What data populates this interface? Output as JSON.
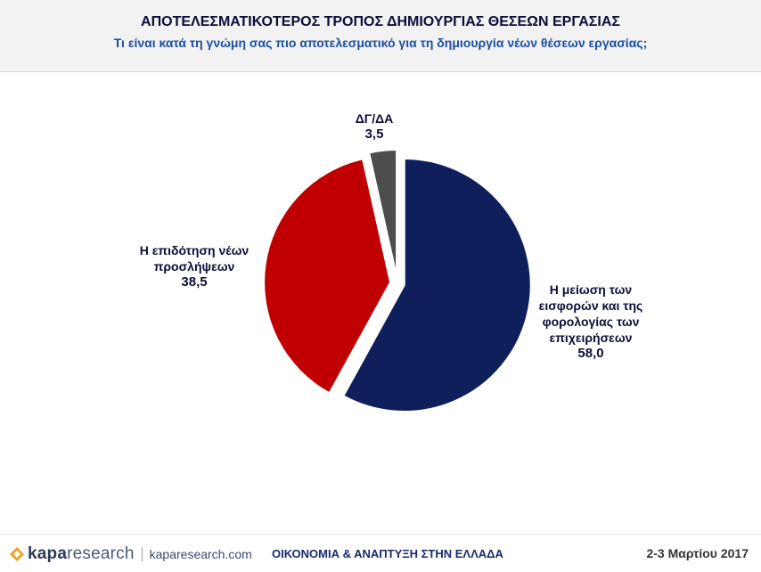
{
  "header": {
    "title": "ΑΠΟΤΕΛΕΣΜΑΤΙΚΟΤΕΡΟΣ ΤΡΟΠΟΣ  ΔΗΜΙΟΥΡΓΙΑΣ ΘΕΣΕΩΝ ΕΡΓΑΣΙΑΣ",
    "subtitle": "Τι είναι κατά τη γνώμη σας πιο αποτελεσματικό για τη δημιουργία νέων θέσεων εργασίας;"
  },
  "chart_data": {
    "type": "pie",
    "title": "ΑΠΟΤΕΛΕΣΜΑΤΙΚΟΤΕΡΟΣ ΤΡΟΠΟΣ  ΔΗΜΙΟΥΡΓΙΑΣ ΘΕΣΕΩΝ ΕΡΓΑΣΙΑΣ",
    "slices": [
      {
        "label_lines": [
          "Η μείωση των",
          "εισφορών και της",
          "φορολογίας των",
          "επιχειρήσεων"
        ],
        "value": 58.0,
        "value_text": "58,0",
        "color": "#0f1f5c"
      },
      {
        "label_lines": [
          "Η επιδότηση νέων",
          "προσλήψεων"
        ],
        "value": 38.5,
        "value_text": "38,5",
        "color": "#c00000"
      },
      {
        "label_lines": [
          "ΔΓ/ΔΑ"
        ],
        "value": 3.5,
        "value_text": "3,5",
        "color": "#4d4d4d"
      }
    ]
  },
  "footer": {
    "brand_bold": "kapa",
    "brand_light": "research",
    "site": "kaparesearch.com",
    "center": "ΟΙΚΟΝΟΜΙΑ & ΑΝΑΠΤΥΞΗ ΣΤΗΝ ΕΛΛΑΔΑ",
    "date": "2-3 Μαρτίου 2017"
  }
}
